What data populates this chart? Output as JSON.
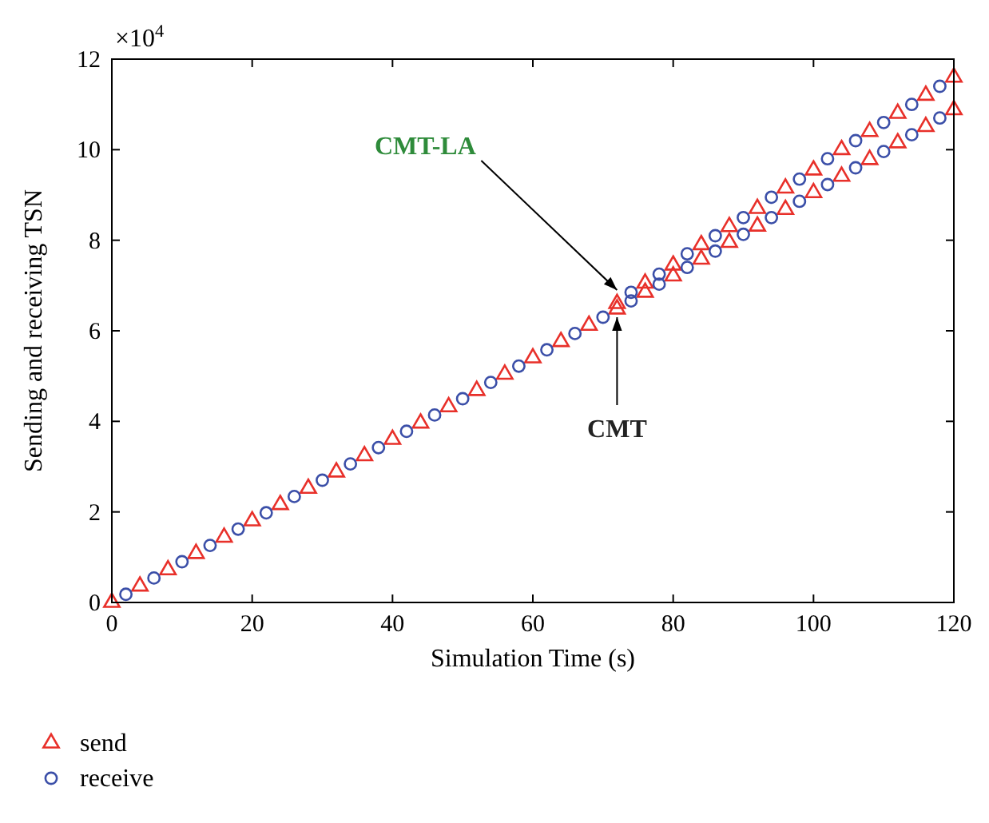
{
  "chart_data": {
    "type": "scatter",
    "xlabel": "Simulation Time (s)",
    "ylabel": "Sending and receiving TSN",
    "xlim": [
      0,
      120
    ],
    "xticks": [
      0,
      20,
      40,
      60,
      80,
      100,
      120
    ],
    "ylim": [
      0,
      12
    ],
    "yticks": [
      0,
      2,
      4,
      6,
      8,
      10,
      12
    ],
    "grid": false,
    "legend": "bottom left",
    "annotations": [
      "×10$^{4}$",
      {
        "text": "CMT-LA",
        "x": 72,
        "y": 6.9
      },
      {
        "text": "CMT",
        "x": 72,
        "y": 6.3
      }
    ],
    "series": [
      {
        "name": "send",
        "color": "#e8302a",
        "marker": "triangle",
        "x": [
          0,
          4,
          8,
          12,
          16,
          20,
          24,
          28,
          32,
          36,
          40,
          44,
          48,
          52,
          56,
          60,
          64,
          68,
          72,
          76,
          80,
          84,
          88,
          92,
          96,
          100,
          104,
          108,
          112,
          116,
          120,
          72,
          76,
          80,
          84,
          88,
          92,
          96,
          100,
          104,
          108,
          112,
          116,
          120
        ],
        "values": [
          0,
          0.36,
          0.72,
          1.08,
          1.44,
          1.8,
          2.16,
          2.52,
          2.88,
          3.24,
          3.6,
          3.96,
          4.32,
          4.68,
          5.04,
          5.4,
          5.76,
          6.12,
          6.48,
          6.85,
          7.21,
          7.58,
          7.95,
          8.31,
          8.68,
          9.05,
          9.41,
          9.78,
          10.15,
          10.51,
          10.88,
          6.6,
          7.05,
          7.45,
          7.9,
          8.3,
          8.7,
          9.15,
          9.55,
          10.0,
          10.4,
          10.8,
          11.2,
          11.6
        ]
      },
      {
        "name": "receive",
        "color": "#3b4fa8",
        "marker": "circle",
        "x": [
          2,
          6,
          10,
          14,
          18,
          22,
          26,
          30,
          34,
          38,
          42,
          46,
          50,
          54,
          58,
          62,
          66,
          70,
          74,
          78,
          82,
          86,
          90,
          94,
          98,
          102,
          106,
          110,
          114,
          118,
          74,
          78,
          82,
          86,
          90,
          94,
          98,
          102,
          106,
          110,
          114,
          118
        ],
        "values": [
          0.18,
          0.54,
          0.9,
          1.26,
          1.62,
          1.98,
          2.34,
          2.7,
          3.06,
          3.42,
          3.78,
          4.14,
          4.5,
          4.86,
          5.22,
          5.58,
          5.94,
          6.3,
          6.66,
          7.03,
          7.4,
          7.76,
          8.13,
          8.5,
          8.86,
          9.23,
          9.6,
          9.96,
          10.33,
          10.7,
          6.85,
          7.25,
          7.7,
          8.1,
          8.5,
          8.95,
          9.35,
          9.8,
          10.2,
          10.6,
          11.0,
          11.4
        ]
      }
    ]
  }
}
